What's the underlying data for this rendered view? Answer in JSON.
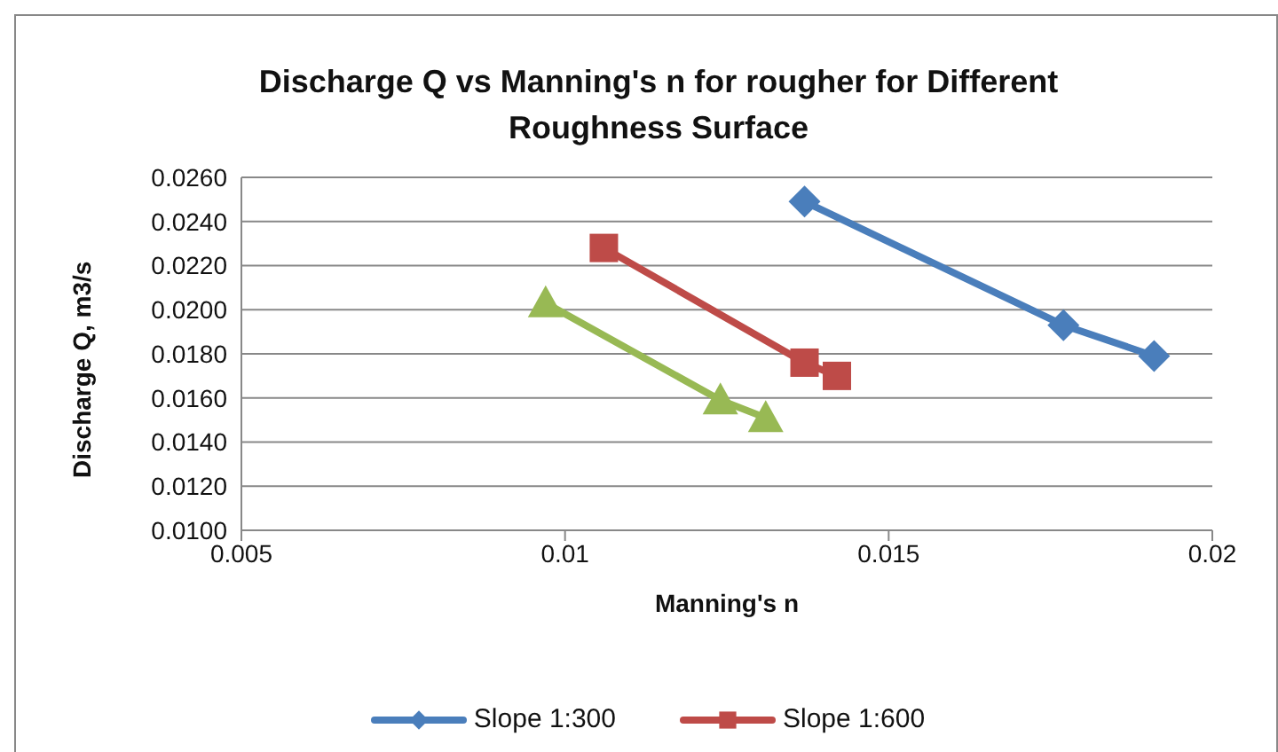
{
  "chart_data": {
    "type": "line",
    "title": "Discharge Q vs Manning's n for rougher for Different Roughness Surface",
    "xlabel": "Manning's n",
    "ylabel": "Discharge Q, m3/s",
    "xlim": [
      0.005,
      0.02
    ],
    "xticks": [
      0.005,
      0.01,
      0.015,
      0.02
    ],
    "ylim": [
      0.01,
      0.026
    ],
    "yticks": [
      {
        "value": 0.01,
        "label": "0.0100"
      },
      {
        "value": 0.012,
        "label": "0.0120"
      },
      {
        "value": 0.014,
        "label": "0.0140"
      },
      {
        "value": 0.016,
        "label": "0.0160"
      },
      {
        "value": 0.018,
        "label": "0.0180"
      },
      {
        "value": 0.02,
        "label": "0.0200"
      },
      {
        "value": 0.022,
        "label": "0.0220"
      },
      {
        "value": 0.024,
        "label": "0.0240"
      },
      {
        "value": 0.026,
        "label": "0.0260"
      }
    ],
    "grid": "y",
    "legend": "bottom",
    "series": [
      {
        "name": "Slope 1:300",
        "color": "#4a7ebb",
        "marker": "diamond",
        "x": [
          0.0137,
          0.0177,
          0.0191
        ],
        "values": [
          0.0249,
          0.0193,
          0.0179
        ]
      },
      {
        "name": "Slope 1:600",
        "color": "#be4b48",
        "marker": "square",
        "x": [
          0.0106,
          0.0137,
          0.0142
        ],
        "values": [
          0.0228,
          0.0176,
          0.017
        ]
      },
      {
        "color": "#98b954",
        "marker": "triangle",
        "x": [
          0.0097,
          0.0124,
          0.0131
        ],
        "values": [
          0.0203,
          0.0159,
          0.0151
        ]
      }
    ]
  }
}
